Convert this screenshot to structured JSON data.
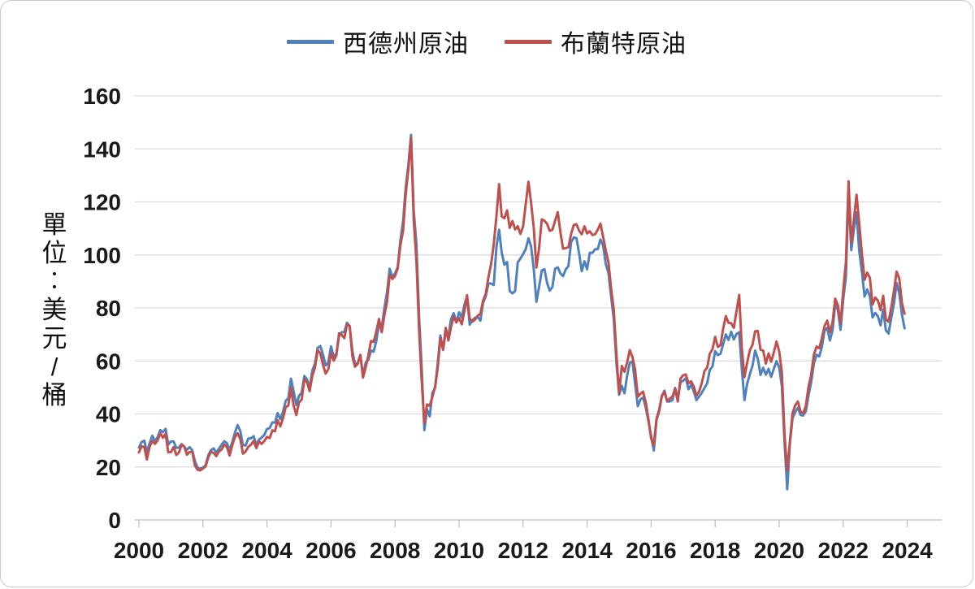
{
  "legend": {
    "series1_label": "西德州原油",
    "series2_label": "布蘭特原油"
  },
  "y_axis_title": "單位︰美元/桶",
  "colors": {
    "wti_blue": "#4F81BD",
    "brent_red": "#C0504D",
    "gridline": "#D9D9D9",
    "axis_line": "#BFBFBF",
    "tick_label": "#1A1A1A"
  },
  "chart_data": {
    "type": "line",
    "title": "",
    "xlabel": "",
    "ylabel": "單位︰美元/桶",
    "ylim": [
      0,
      160
    ],
    "yticks": [
      0,
      20,
      40,
      60,
      80,
      100,
      120,
      140,
      160
    ],
    "xticks": [
      2000,
      2002,
      2004,
      2006,
      2008,
      2010,
      2012,
      2014,
      2016,
      2018,
      2020,
      2022,
      2024
    ],
    "grid": "horizontal",
    "legend_position": "top-center",
    "x_start_year": 2000,
    "x_step_months": 1,
    "series": [
      {
        "name": "西德州原油",
        "color": "#4F81BD",
        "values": [
          27.3,
          29.4,
          29.9,
          25.7,
          28.8,
          31.8,
          29.7,
          31.3,
          33.9,
          33.1,
          34.4,
          28.4,
          29.6,
          29.6,
          27.2,
          27.4,
          28.6,
          27.6,
          26.5,
          27.5,
          26.2,
          22.2,
          19.7,
          19.3,
          19.7,
          20.7,
          24.4,
          26.3,
          27.0,
          25.5,
          26.9,
          28.4,
          29.7,
          28.9,
          26.3,
          29.4,
          33.0,
          35.8,
          33.5,
          28.2,
          28.1,
          30.7,
          30.8,
          31.6,
          28.3,
          30.3,
          31.1,
          32.1,
          34.3,
          34.7,
          36.8,
          36.7,
          40.3,
          38.0,
          40.8,
          44.9,
          46.0,
          53.3,
          48.5,
          43.3,
          46.8,
          48.0,
          54.3,
          53.0,
          49.8,
          56.4,
          59.0,
          65.0,
          65.6,
          62.4,
          58.3,
          59.4,
          65.5,
          61.6,
          62.7,
          69.4,
          70.8,
          70.9,
          74.4,
          73.0,
          63.8,
          58.9,
          59.1,
          62.0,
          54.5,
          59.3,
          60.4,
          63.9,
          63.5,
          67.5,
          74.1,
          72.4,
          79.9,
          85.8,
          94.8,
          91.7,
          93.0,
          95.4,
          105.5,
          112.6,
          125.4,
          133.9,
          145.3,
          116.7,
          104.1,
          76.6,
          57.3,
          33.9,
          41.7,
          39.1,
          48.0,
          49.8,
          59.0,
          69.6,
          64.1,
          71.0,
          69.4,
          75.7,
          78.0,
          74.5,
          78.3,
          76.4,
          81.2,
          84.3,
          73.7,
          75.3,
          76.3,
          76.6,
          75.2,
          81.9,
          84.3,
          89.2,
          89.2,
          88.6,
          102.9,
          109.5,
          100.9,
          96.3,
          97.3,
          86.3,
          85.5,
          86.4,
          97.2,
          98.6,
          100.3,
          102.2,
          106.2,
          103.3,
          94.7,
          82.3,
          87.9,
          94.1,
          94.6,
          89.5,
          86.5,
          87.9,
          94.8,
          95.3,
          93.0,
          92.0,
          94.5,
          95.8,
          104.7,
          106.6,
          106.3,
          100.5,
          93.9,
          97.6,
          94.6,
          100.8,
          100.8,
          102.1,
          102.2,
          105.8,
          103.6,
          96.5,
          93.2,
          84.4,
          75.8,
          59.3,
          47.2,
          50.6,
          47.8,
          54.5,
          59.3,
          59.8,
          51.2,
          42.9,
          45.5,
          46.2,
          42.4,
          37.2,
          31.7,
          26.2,
          37.6,
          41.0,
          46.7,
          48.8,
          44.7,
          44.7,
          45.2,
          49.8,
          45.7,
          52.0,
          52.5,
          53.5,
          49.3,
          51.1,
          48.5,
          45.2,
          46.6,
          48.0,
          49.8,
          51.6,
          56.6,
          57.9,
          63.7,
          62.2,
          62.7,
          66.3,
          70.0,
          67.9,
          71.0,
          68.1,
          70.2,
          70.8,
          57.0,
          45.2,
          51.4,
          55.0,
          58.2,
          63.9,
          60.8,
          54.7,
          57.4,
          54.8,
          57.0,
          54.0,
          57.0,
          59.9,
          57.5,
          50.5,
          29.2,
          11.6,
          28.6,
          38.3,
          40.7,
          42.3,
          39.6,
          39.4,
          41.0,
          47.0,
          52.0,
          59.0,
          62.3,
          61.7,
          65.2,
          71.4,
          72.5,
          67.7,
          71.6,
          81.5,
          79.2,
          71.7,
          83.2,
          91.6,
          123.7,
          101.8,
          109.6,
          116.0,
          101.6,
          93.7,
          84.3,
          87.0,
          84.4,
          76.4,
          78.1,
          76.8,
          73.4,
          79.4,
          71.6,
          70.3,
          76.1,
          81.4,
          89.4,
          85.5,
          77.7,
          72.3
        ]
      },
      {
        "name": "布蘭特原油",
        "color": "#C0504D",
        "values": [
          25.5,
          27.8,
          27.5,
          22.8,
          27.7,
          29.8,
          28.7,
          30.0,
          32.7,
          31.0,
          32.5,
          25.5,
          25.6,
          27.5,
          24.5,
          25.5,
          28.4,
          27.7,
          24.6,
          25.7,
          25.6,
          20.5,
          18.9,
          18.7,
          19.4,
          20.2,
          23.7,
          25.7,
          25.3,
          24.1,
          25.8,
          26.6,
          28.4,
          27.5,
          24.3,
          28.2,
          31.3,
          32.7,
          30.5,
          25.0,
          25.8,
          27.6,
          28.4,
          29.8,
          27.1,
          29.6,
          28.7,
          29.8,
          31.3,
          30.9,
          33.8,
          33.4,
          37.6,
          35.3,
          38.3,
          42.5,
          43.2,
          49.8,
          43.1,
          39.6,
          44.3,
          45.4,
          53.1,
          51.9,
          48.6,
          54.4,
          57.5,
          64.1,
          62.9,
          58.5,
          55.2,
          56.9,
          63.0,
          60.1,
          62.1,
          70.4,
          69.8,
          68.6,
          73.7,
          73.2,
          61.7,
          57.8,
          58.9,
          62.3,
          53.7,
          57.6,
          62.1,
          67.5,
          67.2,
          71.1,
          75.8,
          70.8,
          77.2,
          82.3,
          92.4,
          90.9,
          92.0,
          95.0,
          103.7,
          109.1,
          122.8,
          132.3,
          144.2,
          113.2,
          97.9,
          71.9,
          52.5,
          36.6,
          43.6,
          43.1,
          46.5,
          50.2,
          57.3,
          68.6,
          64.4,
          72.5,
          67.7,
          72.8,
          76.7,
          74.5,
          76.2,
          73.8,
          78.8,
          84.8,
          75.9,
          74.8,
          75.6,
          77.1,
          77.8,
          82.7,
          85.3,
          91.5,
          96.5,
          104.0,
          114.6,
          126.7,
          114.5,
          113.8,
          116.8,
          110.2,
          112.8,
          109.6,
          110.8,
          107.9,
          110.7,
          119.3,
          127.6,
          119.8,
          110.3,
          95.2,
          102.6,
          113.4,
          112.9,
          111.7,
          109.1,
          109.5,
          112.9,
          116.1,
          108.5,
          102.3,
          102.6,
          102.9,
          107.9,
          111.3,
          111.6,
          109.1,
          107.8,
          110.8,
          108.1,
          108.9,
          107.5,
          107.8,
          109.5,
          111.8,
          106.8,
          101.6,
          97.1,
          87.4,
          79.4,
          62.3,
          47.8,
          58.1,
          55.9,
          59.5,
          64.1,
          61.5,
          56.6,
          46.5,
          47.6,
          48.4,
          44.3,
          38.0,
          30.7,
          28.2,
          38.2,
          41.6,
          46.7,
          48.3,
          44.9,
          45.8,
          46.6,
          49.5,
          44.7,
          53.3,
          54.6,
          54.9,
          51.6,
          52.3,
          50.3,
          46.9,
          48.5,
          51.7,
          56.2,
          57.5,
          62.7,
          64.4,
          69.1,
          65.3,
          66.0,
          72.1,
          76.9,
          74.4,
          74.2,
          72.5,
          78.9,
          84.9,
          64.8,
          53.9,
          59.4,
          64.0,
          66.1,
          71.2,
          71.3,
          64.2,
          63.9,
          59.0,
          62.8,
          59.7,
          63.2,
          67.3,
          63.7,
          55.7,
          32.0,
          18.5,
          29.4,
          40.3,
          43.2,
          44.7,
          40.9,
          40.2,
          43.0,
          50.2,
          54.8,
          62.3,
          65.4,
          64.8,
          68.5,
          73.2,
          75.2,
          70.8,
          74.5,
          83.5,
          81.0,
          74.2,
          86.5,
          97.1,
          127.8,
          104.6,
          113.3,
          122.7,
          111.9,
          100.5,
          90.6,
          93.3,
          91.4,
          81.3,
          83.9,
          82.8,
          79.2,
          84.6,
          75.7,
          74.8,
          80.1,
          86.2,
          93.7,
          91.1,
          82.0,
          77.8
        ]
      }
    ]
  }
}
